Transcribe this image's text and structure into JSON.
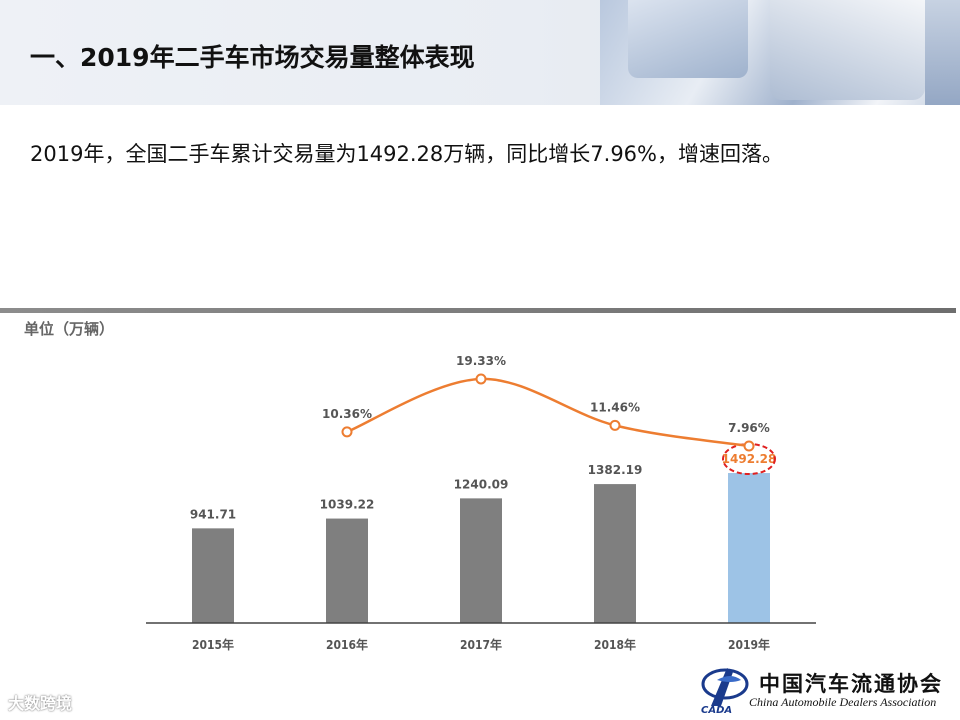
{
  "header": {
    "title": "一、2019年二手车市场交易量整体表现"
  },
  "summary": "2019年，全国二手车累计交易量为1492.28万辆，同比增长7.96%，增速回落。",
  "colors": {
    "bar": "#7f7f7f",
    "highlight_bar": "#9dc3e6",
    "line": "#ed7d31",
    "highlight_ring": "#e02020"
  },
  "chart_data": {
    "type": "bar",
    "unit_label": "单位（万辆）",
    "categories": [
      "2015年",
      "2016年",
      "2017年",
      "2018年",
      "2019年"
    ],
    "series": [
      {
        "type": "bar",
        "values": [
          941.71,
          1039.22,
          1240.09,
          1382.19,
          1492.28
        ],
        "labels": [
          "941.71",
          "1039.22",
          "1240.09",
          "1382.19",
          "1492.28"
        ]
      },
      {
        "type": "line",
        "values": [
          null,
          10.36,
          19.33,
          11.46,
          7.96
        ],
        "labels": [
          "",
          "10.36%",
          "19.33%",
          "11.46%",
          "7.96%"
        ]
      }
    ],
    "highlight_index": 4,
    "grid": false,
    "legend": "none"
  },
  "footer": {
    "logo_cn": "中国汽车流通协会",
    "logo_en": "China Automobile Dealers Association",
    "logo_mark": "CADA",
    "watermark": "大数跨境"
  }
}
